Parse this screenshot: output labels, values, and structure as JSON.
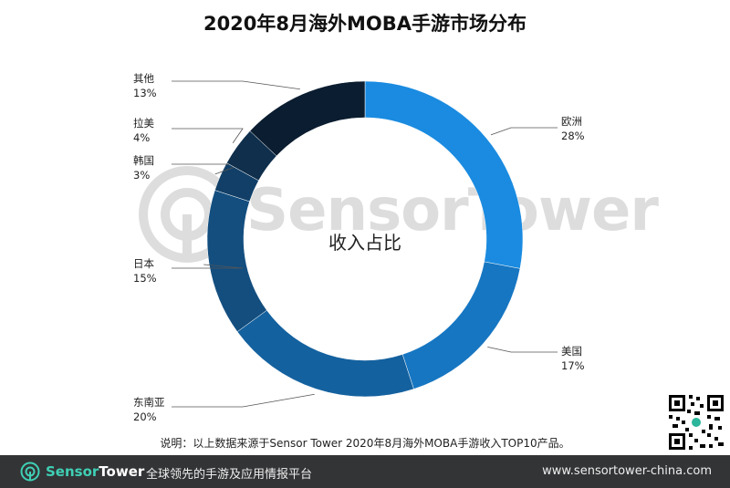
{
  "title": "2020年8月海外MOBA手游市场分布",
  "center_label": "收入占比",
  "note": "说明：以上数据来源于Sensor Tower 2020年8月海外MOBA手游收入TOP10产品。",
  "watermark": "SensorTower",
  "footer": {
    "brand_sensor": "Sensor",
    "brand_tower": "Tower",
    "slogan": "全球领先的手游及应用情报平台",
    "site": "www.sensortower-china.com"
  },
  "colors": {
    "欧洲": "#1a8be0",
    "美国": "#1676c2",
    "东南亚": "#14619f",
    "日本": "#134e7f",
    "韩国": "#113f67",
    "拉美": "#0f2f4c",
    "其他": "#0b1d30"
  },
  "chart_data": {
    "type": "pie",
    "donut": true,
    "title": "2020年8月海外MOBA手游市场分布",
    "center_text": "收入占比",
    "slices": [
      {
        "label": "欧洲",
        "value": 28,
        "display": "28%"
      },
      {
        "label": "美国",
        "value": 17,
        "display": "17%"
      },
      {
        "label": "东南亚",
        "value": 20,
        "display": "20%"
      },
      {
        "label": "日本",
        "value": 15,
        "display": "15%"
      },
      {
        "label": "韩国",
        "value": 3,
        "display": "3%"
      },
      {
        "label": "拉美",
        "value": 4,
        "display": "4%"
      },
      {
        "label": "其他",
        "value": 13,
        "display": "13%"
      }
    ]
  }
}
